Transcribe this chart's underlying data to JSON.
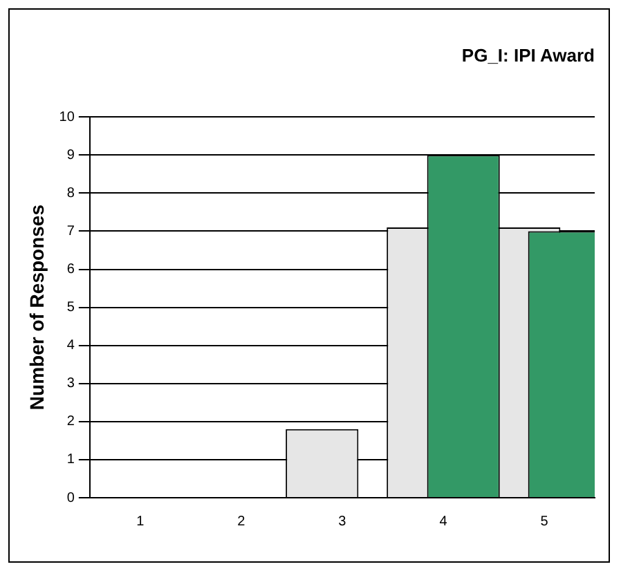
{
  "chart_data": {
    "type": "bar",
    "title": "PG_I: IPI Award",
    "ylabel": "Number of Responses",
    "categories": [
      "1",
      "2",
      "3",
      "4",
      "5"
    ],
    "series": [
      {
        "color": "#e6e6e6",
        "values": [
          0,
          0,
          1.8,
          7.1,
          7.1
        ]
      },
      {
        "color": "#339966",
        "values": [
          0,
          0,
          0,
          9,
          7
        ]
      }
    ],
    "ylim": [
      0,
      10
    ],
    "yticks": [
      0,
      1,
      2,
      3,
      4,
      5,
      6,
      7,
      8,
      9,
      10
    ],
    "grid": "y",
    "legend": false
  }
}
